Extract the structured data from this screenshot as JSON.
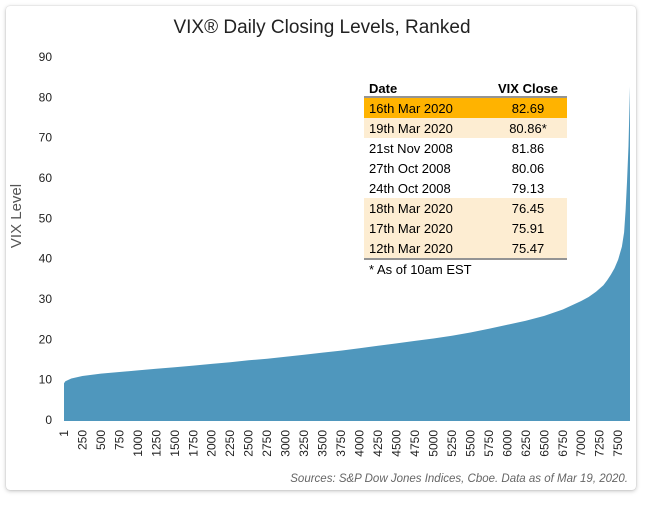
{
  "chart_data": {
    "type": "area",
    "title": "VIX® Daily Closing Levels, Ranked",
    "ylabel": "VIX Level",
    "xlabel": "",
    "ylim": [
      0,
      90
    ],
    "yticks": [
      0,
      10,
      20,
      30,
      40,
      50,
      60,
      70,
      80,
      90
    ],
    "xlim": [
      1,
      7660
    ],
    "xticks": [
      1,
      250,
      500,
      750,
      1000,
      1250,
      1500,
      1750,
      2000,
      2250,
      2500,
      2750,
      3000,
      3250,
      3500,
      3750,
      4000,
      4250,
      4500,
      4750,
      5000,
      5250,
      5500,
      5750,
      6000,
      6250,
      6500,
      6750,
      7000,
      7250,
      7500
    ],
    "series": [
      {
        "name": "VIX daily close, ranked",
        "color": "#4f97bd",
        "x": [
          1,
          20,
          100,
          250,
          500,
          750,
          1000,
          1250,
          1500,
          1750,
          2000,
          2250,
          2500,
          2750,
          3000,
          3250,
          3500,
          3750,
          4000,
          4250,
          4500,
          4750,
          5000,
          5250,
          5500,
          5750,
          6000,
          6250,
          6500,
          6750,
          7000,
          7100,
          7200,
          7300,
          7350,
          7400,
          7450,
          7500,
          7550,
          7580,
          7600,
          7620,
          7640,
          7650,
          7660
        ],
        "y": [
          9.1,
          9.6,
          10.3,
          10.9,
          11.5,
          11.9,
          12.3,
          12.7,
          13.1,
          13.5,
          13.9,
          14.3,
          14.8,
          15.2,
          15.7,
          16.2,
          16.7,
          17.2,
          17.8,
          18.4,
          19.0,
          19.6,
          20.2,
          20.9,
          21.7,
          22.6,
          23.6,
          24.6,
          25.8,
          27.4,
          29.5,
          30.5,
          31.8,
          33.4,
          34.6,
          36.0,
          37.6,
          39.8,
          43.0,
          46.5,
          52.0,
          59.0,
          68.0,
          76.0,
          82.69
        ]
      }
    ],
    "table": {
      "headers": [
        "Date",
        "VIX Close"
      ],
      "rows": [
        {
          "date": "16th Mar 2020",
          "close": "82.69",
          "highlight": "strong"
        },
        {
          "date": "19th Mar 2020",
          "close": "80.86*",
          "highlight": "light"
        },
        {
          "date": "21st Nov 2008",
          "close": "81.86",
          "highlight": "none"
        },
        {
          "date": "27th Oct 2008",
          "close": "80.06",
          "highlight": "none"
        },
        {
          "date": "24th Oct 2008",
          "close": "79.13",
          "highlight": "none"
        },
        {
          "date": "18th Mar 2020",
          "close": "76.45",
          "highlight": "light"
        },
        {
          "date": "17th Mar 2020",
          "close": "75.91",
          "highlight": "light"
        },
        {
          "date": "12th Mar 2020",
          "close": "75.47",
          "highlight": "light"
        }
      ],
      "footnote": "* As of 10am EST"
    },
    "colors": {
      "strong": "#ffb300",
      "light": "#fdedd2",
      "rule": "#555555"
    },
    "source": "Sources: S&P Dow Jones Indices, Cboe.  Data as of Mar 19, 2020."
  }
}
